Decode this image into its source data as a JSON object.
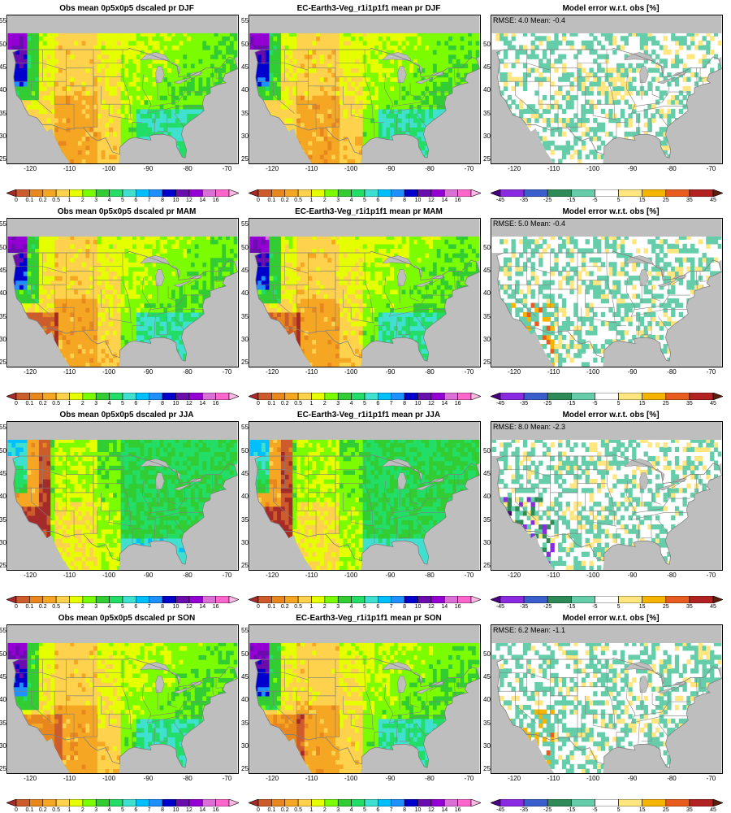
{
  "rows": [
    {
      "obs_title": "Obs mean 0p5x0p5 dscaled pr DJF",
      "model_title": "EC-Earth3-Veg_r1i1p1f1 mean pr DJF",
      "err_title": "Model error w.r.t. obs [%]",
      "rmse_text": "RMSE: 4.0   Mean: -0.4",
      "season": "DJF"
    },
    {
      "obs_title": "Obs mean 0p5x0p5 dscaled pr MAM",
      "model_title": "EC-Earth3-Veg_r1i1p1f1 mean pr MAM",
      "err_title": "Model error w.r.t. obs [%]",
      "rmse_text": "RMSE: 5.0   Mean: -0.4",
      "season": "MAM"
    },
    {
      "obs_title": "Obs mean 0p5x0p5 dscaled pr JJA",
      "model_title": "EC-Earth3-Veg_r1i1p1f1 mean pr JJA",
      "err_title": "Model error w.r.t. obs [%]",
      "rmse_text": "RMSE: 8.0   Mean: -2.3",
      "season": "JJA"
    },
    {
      "obs_title": "Obs mean 0p5x0p5 dscaled pr SON",
      "model_title": "EC-Earth3-Veg_r1i1p1f1 mean pr SON",
      "err_title": "Model error w.r.t. obs [%]",
      "rmse_text": "RMSE: 6.2   Mean: -1.1",
      "season": "SON"
    }
  ],
  "lat_ticks": [
    "55",
    "50",
    "45",
    "40",
    "35",
    "30",
    "25"
  ],
  "lon_ticks": [
    "-120",
    "-110",
    "-100",
    "-90",
    "-80",
    "-70"
  ],
  "pr_levels": [
    "0",
    "0.1",
    "0.2",
    "0.5",
    "1",
    "2",
    "3",
    "4",
    "5",
    "6",
    "7",
    "8",
    "10",
    "12",
    "14",
    "16"
  ],
  "pr_colors": [
    "#a52a2a",
    "#cd5c2c",
    "#e8871e",
    "#f5a623",
    "#ffd24d",
    "#e6ff00",
    "#7cfc00",
    "#32cd32",
    "#22dd66",
    "#40e0d0",
    "#00bfff",
    "#1e90ff",
    "#0000cd",
    "#6a0dad",
    "#9400d3",
    "#da70d6",
    "#ff66cc",
    "#ffb6e6"
  ],
  "err_levels": [
    "-45",
    "-35",
    "-25",
    "-15",
    "-5",
    "5",
    "15",
    "25",
    "35",
    "45"
  ],
  "err_colors": [
    "#4b0082",
    "#8a2be2",
    "#3a5fcd",
    "#2e8b57",
    "#66cdaa",
    "#ffffff",
    "#ffe680",
    "#f5b400",
    "#e85c1f",
    "#b22222",
    "#5a1e0a"
  ],
  "colors": {
    "ocean": "#bebebe",
    "border": "#808080"
  }
}
